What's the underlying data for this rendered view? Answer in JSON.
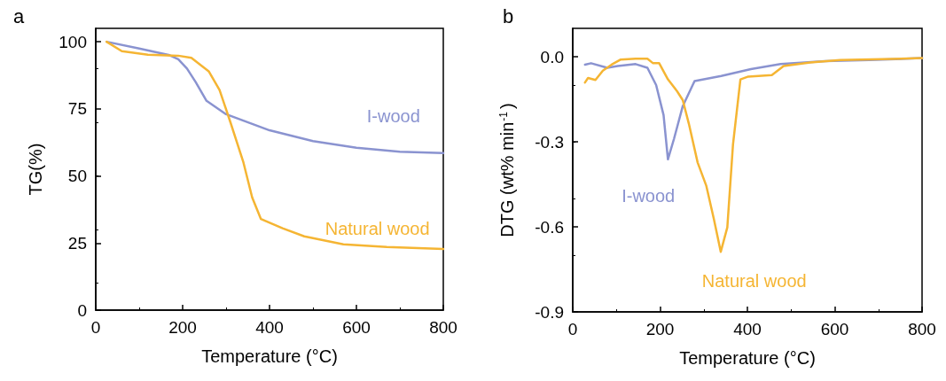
{
  "chart_data": [
    {
      "type": "line",
      "title": "a",
      "xlabel": "Temperature (°C)",
      "ylabel": "TG(%)",
      "xlim": [
        0,
        800
      ],
      "xticks": [
        0,
        200,
        400,
        600,
        800
      ],
      "ylim": [
        0,
        105
      ],
      "yticks": [
        0,
        25,
        50,
        75,
        100
      ],
      "grid": false,
      "marker": "none",
      "line_style": "solid",
      "series": [
        {
          "name": "I-wood",
          "color": "#8a93d0",
          "x": [
            25,
            100,
            170,
            190,
            210,
            230,
            255,
            300,
            400,
            500,
            600,
            700,
            800
          ],
          "values": [
            100,
            97.5,
            95,
            93.5,
            90,
            85,
            78,
            73,
            67,
            63,
            60.5,
            59,
            58.5
          ]
        },
        {
          "name": "Natural wood",
          "color": "#f5b533",
          "x": [
            25,
            60,
            120,
            190,
            220,
            260,
            285,
            310,
            340,
            360,
            380,
            430,
            480,
            570,
            670,
            800
          ],
          "values": [
            100,
            96.5,
            95.2,
            94.8,
            94,
            89,
            82,
            70,
            55,
            42,
            34,
            30.5,
            27.5,
            24.5,
            23.5,
            22.8
          ]
        }
      ]
    },
    {
      "type": "line",
      "title": "b",
      "xlabel": "Temperature (°C)",
      "ylabel": "DTG (wt% min$^{-1}$)",
      "xlim": [
        0,
        800
      ],
      "xticks": [
        0,
        200,
        400,
        600,
        800
      ],
      "ylim": [
        -0.9,
        0.1
      ],
      "yticks": [
        -0.9,
        -0.6,
        -0.3,
        {
          "value": 0,
          "label": "0.0"
        }
      ],
      "grid": false,
      "marker": "none",
      "line_style": "solid",
      "series": [
        {
          "name": "I-wood",
          "color": "#8a93d0",
          "x": [
            28,
            42,
            79,
            103,
            144,
            171,
            191,
            208,
            218,
            232,
            252,
            279,
            340,
            408,
            476,
            578,
            679,
            800
          ],
          "values": [
            -0.028,
            -0.023,
            -0.039,
            -0.033,
            -0.026,
            -0.039,
            -0.1,
            -0.206,
            -0.362,
            -0.289,
            -0.174,
            -0.086,
            -0.068,
            -0.044,
            -0.026,
            -0.016,
            -0.012,
            -0.005
          ]
        },
        {
          "name": "Natural wood",
          "color": "#f5b533",
          "x": [
            28,
            35,
            52,
            69,
            89,
            110,
            144,
            171,
            184,
            198,
            218,
            239,
            252,
            266,
            286,
            306,
            323,
            339,
            354,
            367,
            384,
            402,
            456,
            483,
            544,
            612,
            800
          ],
          "values": [
            -0.091,
            -0.075,
            -0.082,
            -0.049,
            -0.028,
            -0.01,
            -0.007,
            -0.007,
            -0.023,
            -0.023,
            -0.08,
            -0.122,
            -0.153,
            -0.237,
            -0.373,
            -0.456,
            -0.571,
            -0.688,
            -0.602,
            -0.31,
            -0.08,
            -0.07,
            -0.065,
            -0.033,
            -0.02,
            -0.012,
            -0.005
          ]
        }
      ]
    }
  ]
}
